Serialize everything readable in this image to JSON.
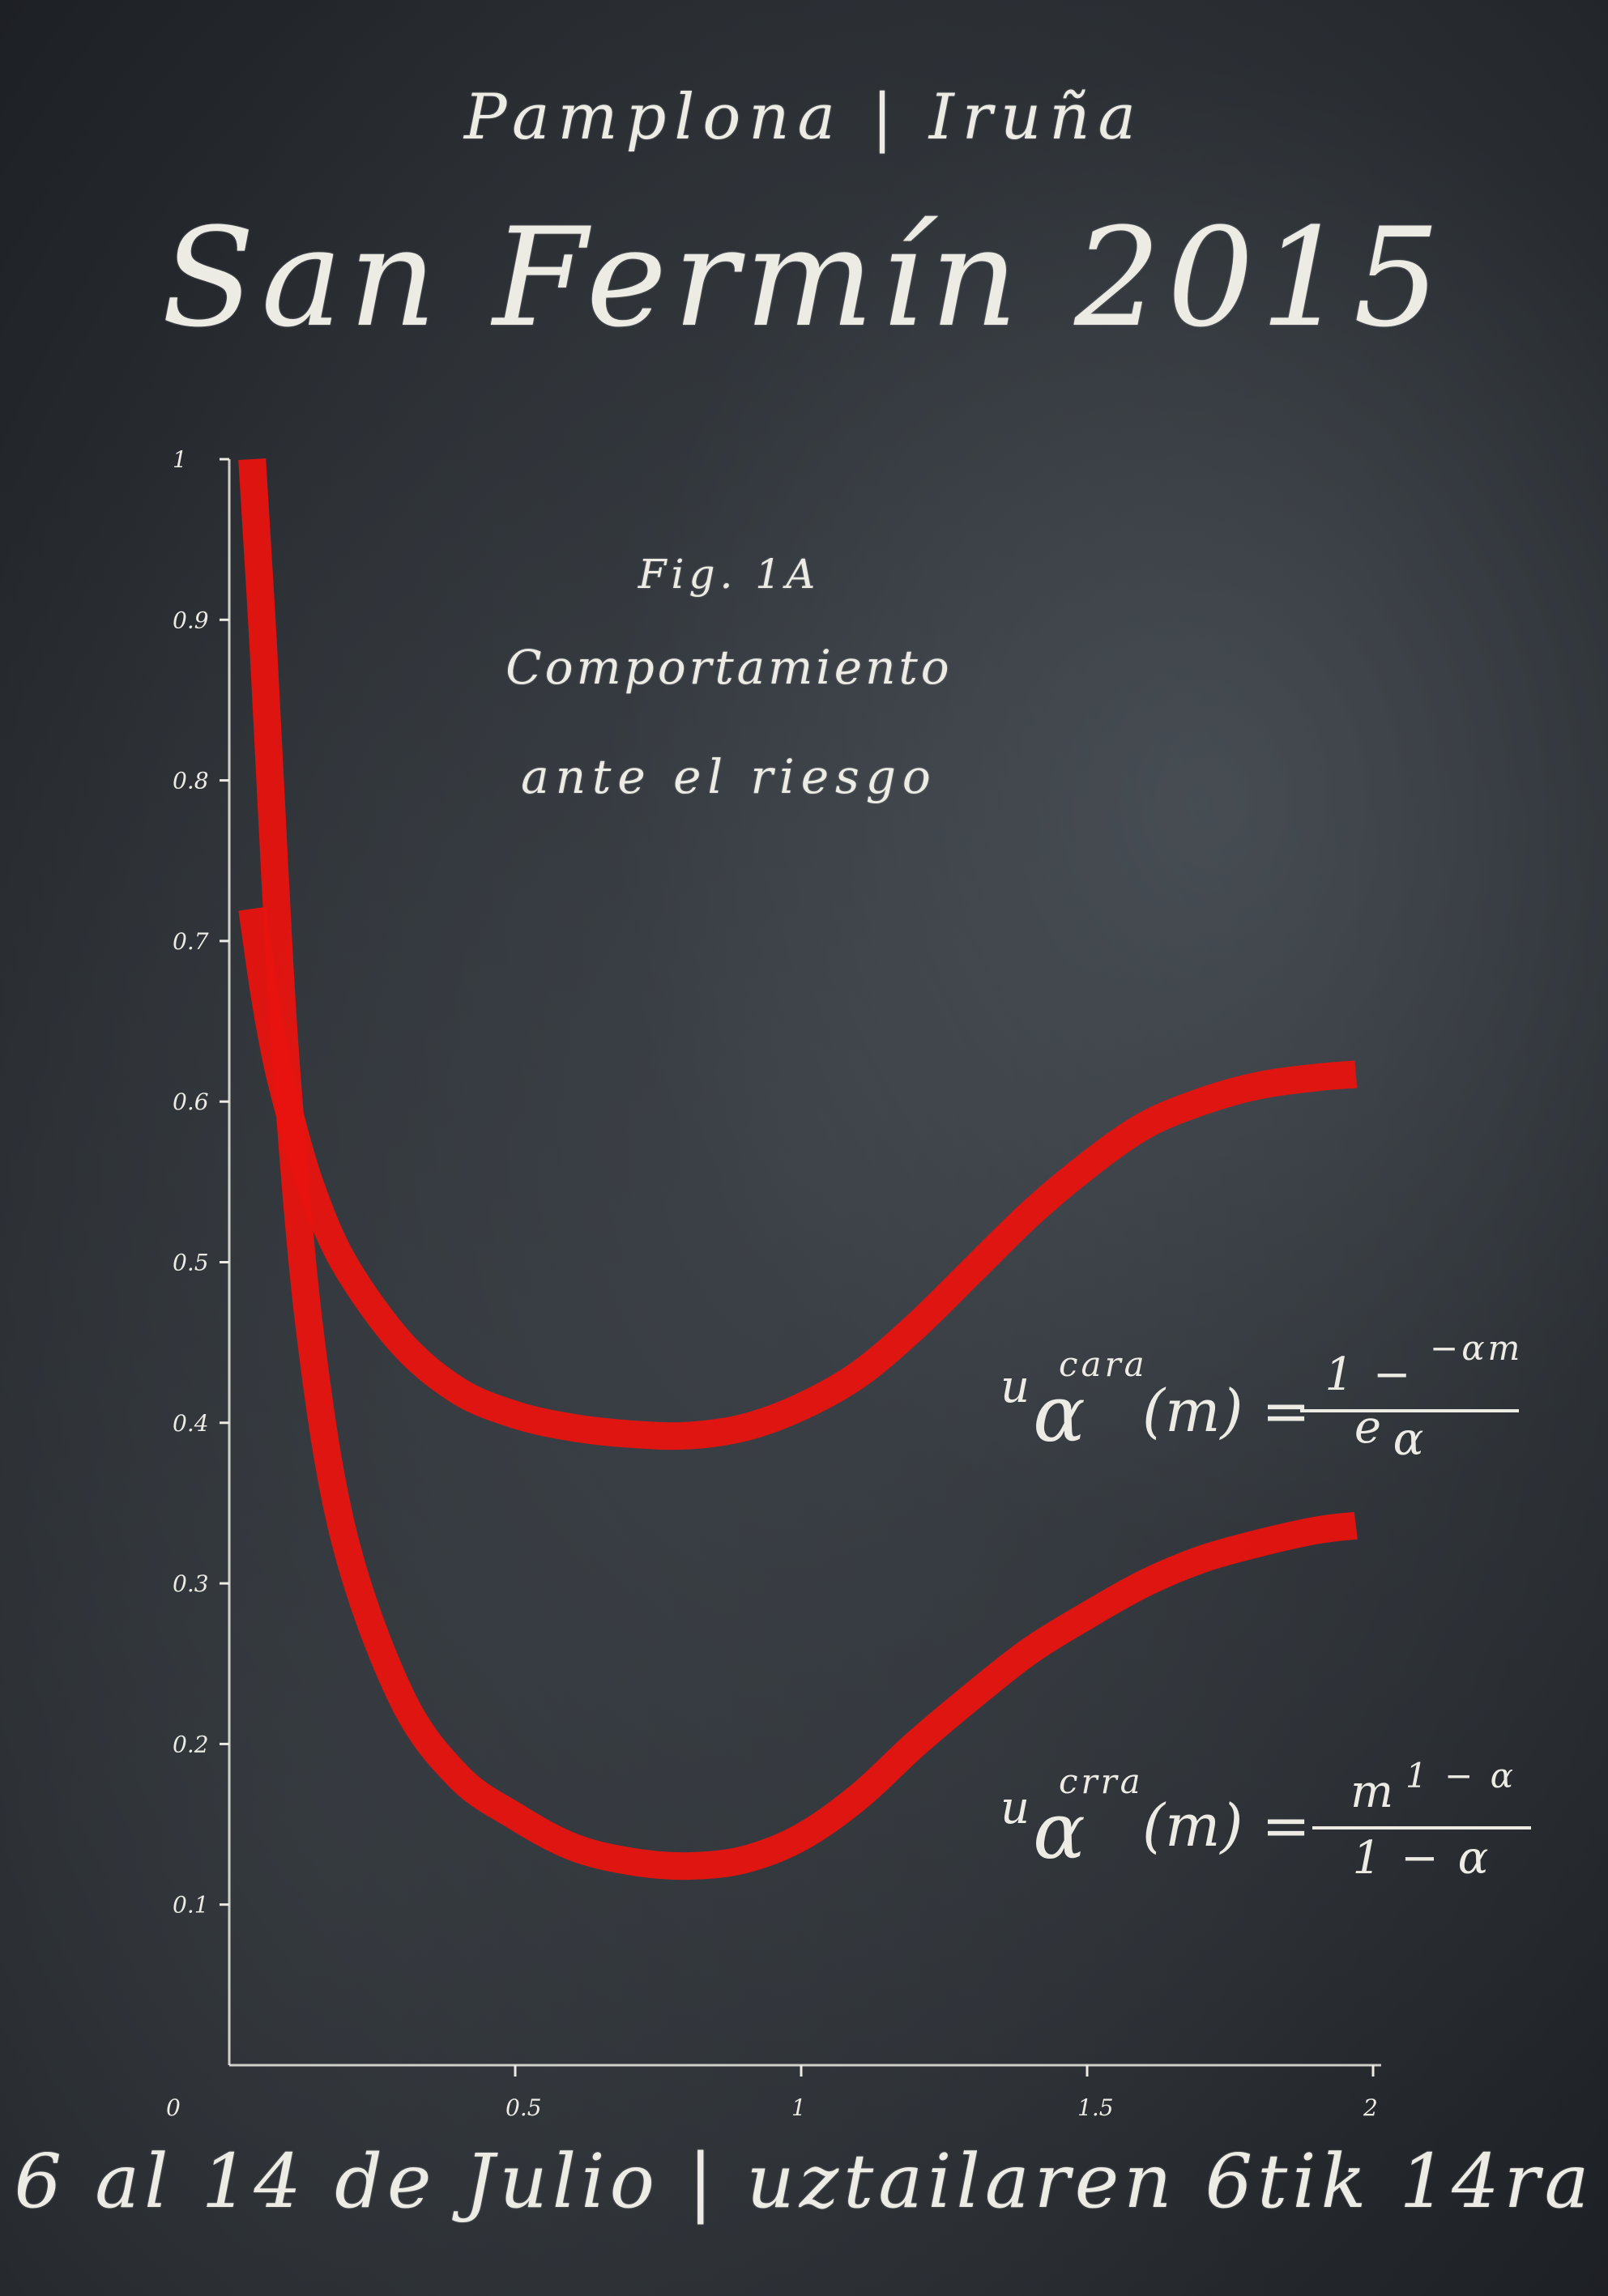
{
  "poster": {
    "city": "Pamplona | Iruña",
    "title": "San Fermín 2015",
    "dates": "6 al 14 de Julio | uztailaren 6tik 14ra"
  },
  "formulas": [
    {
      "symbol": "u",
      "superscript": "cara",
      "subscript": "α",
      "argument": "(m) =",
      "numerator": "1 − e",
      "numerator_exponent": "−αm",
      "denominator": "α"
    },
    {
      "symbol": "u",
      "superscript": "crra",
      "subscript": "α",
      "argument": "(m) =",
      "numerator": "m",
      "numerator_exponent": "1 − α",
      "denominator": "1 − α"
    }
  ],
  "colors": {
    "chalk": "#ecebe4",
    "curve": "#e8130f",
    "board": "#2b2f34"
  },
  "chart_data": {
    "type": "line",
    "title": "Fig. 1A",
    "subtitle_line1": "Comportamiento",
    "subtitle_line2": "ante el riesgo",
    "xlabel": "",
    "ylabel": "",
    "xlim": [
      0,
      2
    ],
    "ylim": [
      0,
      1
    ],
    "x_ticks": [
      "0",
      "0.5",
      "1",
      "1.5",
      "2"
    ],
    "y_ticks": [
      "0.1",
      "0.2",
      "0.3",
      "0.4",
      "0.5",
      "0.6",
      "0.7",
      "0.8",
      "0.9",
      "1"
    ],
    "grid": false,
    "series": [
      {
        "x": [
          0.04,
          0.06,
          0.08,
          0.1,
          0.14,
          0.2,
          0.3,
          0.4,
          0.5,
          0.6,
          0.7,
          0.8,
          0.9,
          1.0,
          1.1,
          1.2,
          1.3,
          1.4,
          1.5,
          1.6,
          1.7,
          1.8,
          1.9,
          1.97
        ],
        "y": [
          0.72,
          0.67,
          0.63,
          0.6,
          0.55,
          0.5,
          0.45,
          0.42,
          0.405,
          0.397,
          0.393,
          0.392,
          0.397,
          0.41,
          0.43,
          0.46,
          0.495,
          0.53,
          0.56,
          0.585,
          0.6,
          0.61,
          0.615,
          0.617
        ]
      },
      {
        "x": [
          0.04,
          0.06,
          0.08,
          0.1,
          0.14,
          0.2,
          0.3,
          0.4,
          0.5,
          0.6,
          0.7,
          0.8,
          0.9,
          1.0,
          1.1,
          1.2,
          1.3,
          1.4,
          1.5,
          1.6,
          1.7,
          1.8,
          1.9,
          1.97
        ],
        "y": [
          1.0,
          0.88,
          0.74,
          0.62,
          0.46,
          0.33,
          0.23,
          0.18,
          0.155,
          0.136,
          0.127,
          0.124,
          0.128,
          0.142,
          0.167,
          0.2,
          0.23,
          0.258,
          0.28,
          0.3,
          0.315,
          0.325,
          0.333,
          0.336
        ]
      }
    ]
  }
}
